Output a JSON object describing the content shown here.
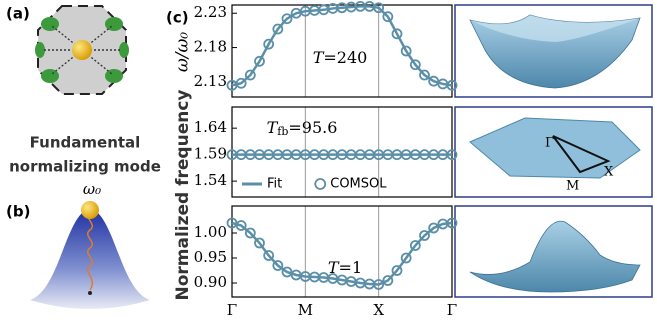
{
  "chart_data": [
    {
      "type": "line",
      "annotation": {
        "symbol": "T",
        "text": "=240"
      },
      "x": [
        0,
        0.125,
        0.25,
        0.375,
        0.5,
        0.625,
        0.75,
        0.875,
        1,
        1.125,
        1.25,
        1.375,
        1.5,
        1.625,
        1.75,
        1.875,
        2,
        2.125,
        2.25,
        2.375,
        2.5,
        2.625,
        2.75,
        2.875,
        3
      ],
      "xlim": [
        0,
        3
      ],
      "xticks": [
        0,
        1,
        2,
        3
      ],
      "ylim": [
        2.108,
        2.242
      ],
      "yticks": [
        2.13,
        2.18,
        2.23
      ],
      "series": [
        {
          "color": "#5b8fa8",
          "style": "line",
          "values": [
            2.125,
            2.128,
            2.14,
            2.16,
            2.185,
            2.207,
            2.222,
            2.23,
            2.233,
            2.234,
            2.235,
            2.237,
            2.238,
            2.239,
            2.24,
            2.24,
            2.238,
            2.225,
            2.2,
            2.175,
            2.155,
            2.14,
            2.131,
            2.127,
            2.125
          ]
        },
        {
          "color": "#5b8fa8",
          "style": "markers",
          "values": [
            2.125,
            2.128,
            2.14,
            2.16,
            2.185,
            2.207,
            2.222,
            2.23,
            2.233,
            2.234,
            2.235,
            2.237,
            2.238,
            2.239,
            2.24,
            2.24,
            2.238,
            2.225,
            2.2,
            2.175,
            2.155,
            2.14,
            2.131,
            2.127,
            2.125
          ]
        }
      ]
    },
    {
      "type": "line",
      "annotation": {
        "symbol": "T",
        "subscript": "fb",
        "text": "=95.6"
      },
      "x": [
        0,
        0.125,
        0.25,
        0.375,
        0.5,
        0.625,
        0.75,
        0.875,
        1,
        1.125,
        1.25,
        1.375,
        1.5,
        1.625,
        1.75,
        1.875,
        2,
        2.125,
        2.25,
        2.375,
        2.5,
        2.625,
        2.75,
        2.875,
        3
      ],
      "xlim": [
        0,
        3
      ],
      "xticks": [
        0,
        1,
        2,
        3
      ],
      "ylim": [
        1.51,
        1.68
      ],
      "yticks": [
        1.54,
        1.59,
        1.64
      ],
      "legend": "lower left",
      "series": [
        {
          "name": "Fit",
          "color": "#5b8fa8",
          "style": "line",
          "values": [
            1.59,
            1.59,
            1.59,
            1.59,
            1.59,
            1.59,
            1.59,
            1.59,
            1.59,
            1.59,
            1.59,
            1.59,
            1.59,
            1.59,
            1.59,
            1.59,
            1.59,
            1.59,
            1.59,
            1.59,
            1.59,
            1.59,
            1.59,
            1.59,
            1.59
          ]
        },
        {
          "name": "COMSOL",
          "color": "#5b8fa8",
          "style": "markers",
          "values": [
            1.59,
            1.59,
            1.59,
            1.59,
            1.59,
            1.59,
            1.59,
            1.59,
            1.59,
            1.59,
            1.59,
            1.59,
            1.59,
            1.59,
            1.59,
            1.59,
            1.59,
            1.59,
            1.59,
            1.59,
            1.59,
            1.59,
            1.59,
            1.59,
            1.59
          ]
        }
      ]
    },
    {
      "type": "line",
      "annotation": {
        "symbol": "T",
        "text": "=1"
      },
      "x": [
        0,
        0.125,
        0.25,
        0.375,
        0.5,
        0.625,
        0.75,
        0.875,
        1,
        1.125,
        1.25,
        1.375,
        1.5,
        1.625,
        1.75,
        1.875,
        2,
        2.125,
        2.25,
        2.375,
        2.5,
        2.625,
        2.75,
        2.875,
        3
      ],
      "xlim": [
        0,
        3
      ],
      "xticks": [
        {
          "value": 0,
          "label": "Γ"
        },
        {
          "value": 1,
          "label": "M"
        },
        {
          "value": 2,
          "label": "X"
        },
        {
          "value": 3,
          "label": "Γ"
        }
      ],
      "ylim": [
        0.872,
        1.054
      ],
      "yticks": [
        {
          "value": 0.9,
          "label": "0.90"
        },
        0.95,
        {
          "value": 1,
          "label": "1.00"
        }
      ],
      "series": [
        {
          "color": "#5b8fa8",
          "style": "line",
          "values": [
            1.02,
            1.015,
            1.0,
            0.98,
            0.955,
            0.935,
            0.922,
            0.916,
            0.913,
            0.912,
            0.911,
            0.909,
            0.906,
            0.903,
            0.9,
            0.898,
            0.897,
            0.905,
            0.925,
            0.95,
            0.975,
            0.995,
            1.01,
            1.018,
            1.02
          ]
        },
        {
          "color": "#5b8fa8",
          "style": "markers",
          "values": [
            1.02,
            1.015,
            1.0,
            0.98,
            0.955,
            0.935,
            0.922,
            0.916,
            0.913,
            0.912,
            0.911,
            0.909,
            0.906,
            0.903,
            0.9,
            0.898,
            0.897,
            0.905,
            0.925,
            0.95,
            0.975,
            0.995,
            1.01,
            1.018,
            1.02
          ]
        }
      ]
    }
  ],
  "figure": {
    "panel_a": "(a)",
    "panel_b": "(b)",
    "panel_c": "(c)",
    "caption_lines": [
      "Fundamental",
      "normalizing mode"
    ],
    "mode_symbol": "ω₀",
    "ylabel": "Normalized frequency",
    "ylabel_symbol": "ω/ω₀",
    "bz_labels": [
      "Γ",
      "M",
      "X"
    ]
  }
}
